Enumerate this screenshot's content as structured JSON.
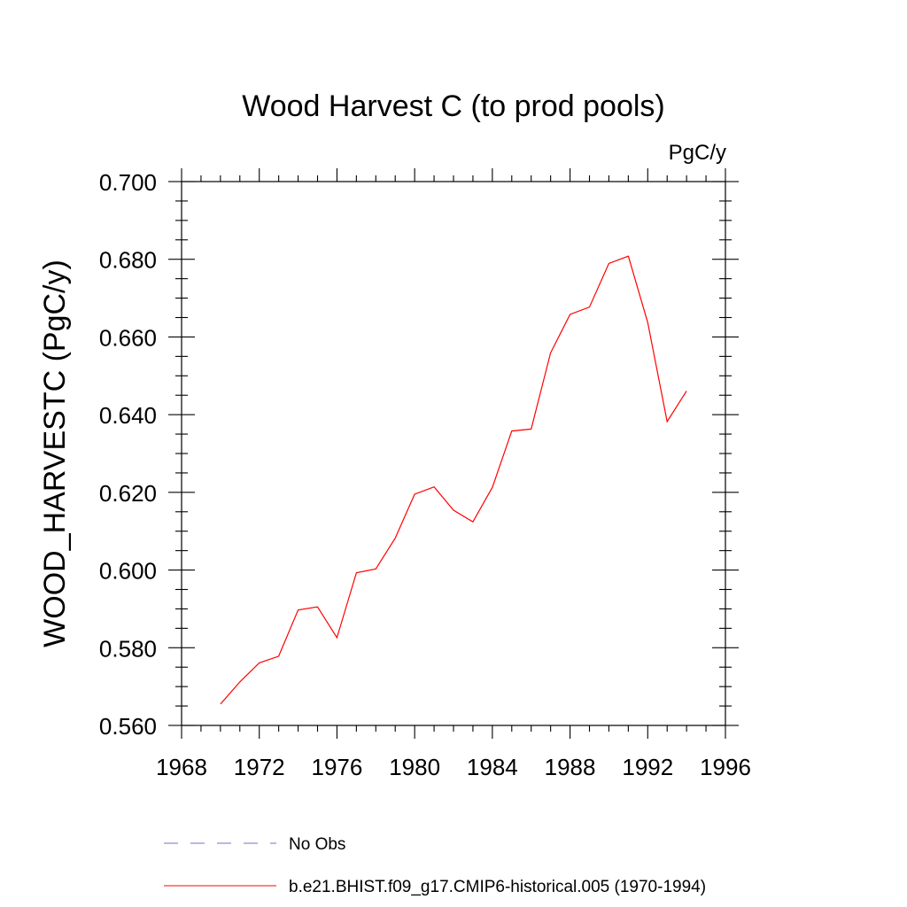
{
  "chart_data": {
    "type": "line",
    "title": "Wood Harvest C (to prod pools)",
    "units": "PgC/y",
    "xlabel": "",
    "ylabel": "WOOD_HARVESTC  (PgC/y)",
    "xlim": [
      1968,
      1996
    ],
    "ylim": [
      0.56,
      0.7
    ],
    "xticks": [
      1968,
      1972,
      1976,
      1980,
      1984,
      1988,
      1992,
      1996
    ],
    "xtick_labels": [
      "1968",
      "1972",
      "1976",
      "1980",
      "1984",
      "1988",
      "1992",
      "1996"
    ],
    "yticks": [
      0.56,
      0.58,
      0.6,
      0.62,
      0.64,
      0.66,
      0.68,
      0.7
    ],
    "ytick_labels": [
      "0.560",
      "0.580",
      "0.600",
      "0.620",
      "0.640",
      "0.660",
      "0.680",
      "0.700"
    ],
    "grid": false,
    "legend_position": "bottom",
    "series": [
      {
        "name": "No Obs",
        "color": "#7b6fc4",
        "style": "dashed",
        "x": [],
        "y": []
      },
      {
        "name": "b.e21.BHIST.f09_g17.CMIP6-historical.005 (1970-1994)",
        "color": "#ff0000",
        "style": "solid",
        "x": [
          1970,
          1971,
          1972,
          1973,
          1974,
          1975,
          1976,
          1977,
          1978,
          1979,
          1980,
          1981,
          1982,
          1983,
          1984,
          1985,
          1986,
          1987,
          1988,
          1989,
          1990,
          1991,
          1992,
          1993,
          1994
        ],
        "y": [
          0.5655,
          0.5712,
          0.5761,
          0.5778,
          0.5897,
          0.5905,
          0.5826,
          0.5993,
          0.6003,
          0.6082,
          0.6195,
          0.6214,
          0.6154,
          0.6124,
          0.6213,
          0.6358,
          0.6363,
          0.6559,
          0.6658,
          0.6677,
          0.6789,
          0.6808,
          0.6637,
          0.6382,
          0.6461
        ]
      }
    ]
  }
}
